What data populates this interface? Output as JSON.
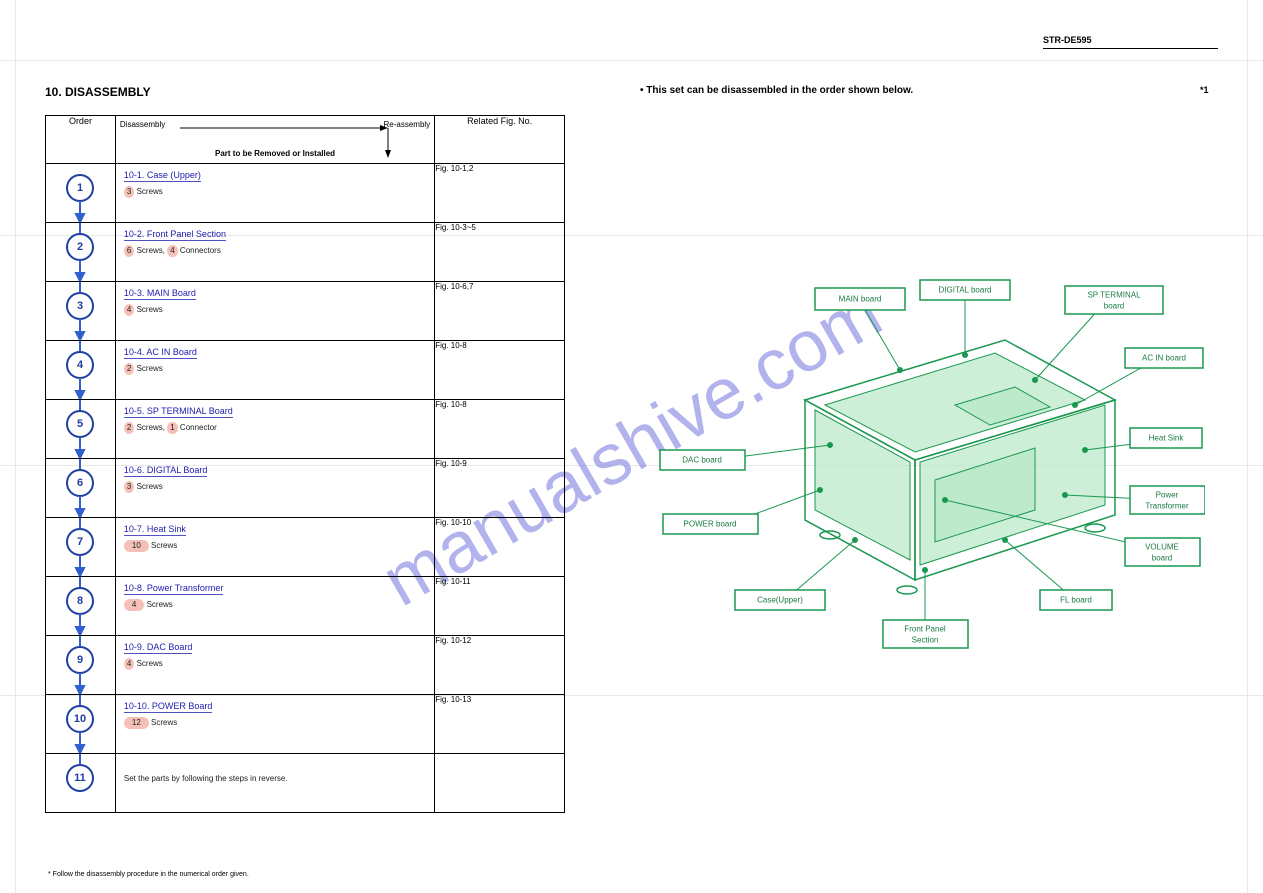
{
  "page": {
    "model": "STR-DE595",
    "section_title": "10. DISASSEMBLY",
    "note_star": "*1",
    "asterisk_note": "* Follow the disassembly procedure in the numerical order given.",
    "diagram_title": "• This set can be disassembled in the order shown below.",
    "table": {
      "head_order": "Order",
      "head_part_disasm": "Disassembly",
      "head_part_reasm": "Re-assembly",
      "head_part_label": "Part to be Removed or Installed",
      "head_fig": "Related Fig. No.",
      "rows": [
        {
          "num": "1",
          "title": "10-1. Case (Upper)",
          "sub_hl": "3",
          "sub_hl_type": "circle",
          "sub_text": " Screws",
          "fig": "Fig. 10-1,2"
        },
        {
          "num": "2",
          "title": "10-2. Front Panel Section",
          "sub_hl": "6",
          "sub_hl_type": "circle",
          "sub_text": " Screws, ",
          "sub_hl2": "4",
          "sub_text2": " Connectors",
          "fig": "Fig. 10-3~5"
        },
        {
          "num": "3",
          "title": "10-3. MAIN Board",
          "sub_hl": "4",
          "sub_hl_type": "circle",
          "sub_text": " Screws",
          "fig": "Fig. 10-6,7"
        },
        {
          "num": "4",
          "title": "10-4. AC IN Board",
          "sub_hl": "2",
          "sub_hl_type": "circle",
          "sub_text": " Screws",
          "fig": "Fig. 10-8"
        },
        {
          "num": "5",
          "title": "10-5. SP TERMINAL Board",
          "sub_hl": "2",
          "sub_hl_type": "circle",
          "sub_text": " Screws, ",
          "sub_hl2": "1",
          "sub_text2": " Connector",
          "fig": "Fig. 10-8"
        },
        {
          "num": "6",
          "title": "10-6. DIGITAL Board",
          "sub_hl": "3",
          "sub_hl_type": "circle",
          "sub_text": " Screws",
          "fig": "Fig. 10-9"
        },
        {
          "num": "7",
          "title": "10-7. Heat Sink",
          "sub_hl": "10",
          "sub_hl_type": "oval",
          "sub_text": " Screws",
          "fig": "Fig. 10-10"
        },
        {
          "num": "8",
          "title": "10-8. Power Transformer",
          "sub_hl": "4",
          "sub_hl_type": "oval",
          "sub_text": " Screws",
          "fig": "Fig. 10-11"
        },
        {
          "num": "9",
          "title": "10-9. DAC Board",
          "sub_hl": "4",
          "sub_hl_type": "circle",
          "sub_text": " Screws",
          "fig": "Fig. 10-12"
        },
        {
          "num": "10",
          "title": "10-10. POWER Board",
          "sub_hl": "12",
          "sub_hl_type": "oval",
          "sub_text": " Screws",
          "fig": "Fig. 10-13"
        },
        {
          "num": "11",
          "title": "",
          "sub_text": "Set the parts by following the steps in reverse.",
          "fig": ""
        }
      ]
    }
  },
  "diagram": {
    "labels": {
      "main": "MAIN board",
      "digital": "DIGITAL board",
      "spterm": "SP TERMINAL\nboard",
      "acin": "AC IN board",
      "heatsink": "Heat Sink",
      "powertrans": "Power\nTransformer",
      "power": "POWER board",
      "front": "Front Panel\nSection",
      "case": "Case(Upper)",
      "dac": "DAC board",
      "fl": "FL board",
      "volume": "VOLUME\nboard"
    },
    "colors": {
      "stroke": "#1a9850",
      "fill": "#b8e8c8",
      "text": "#1a7a40"
    }
  },
  "watermark": "manualshive.com",
  "grid": {
    "hlines": [
      60,
      235,
      465,
      695
    ],
    "vlines": [
      15,
      1247
    ]
  }
}
